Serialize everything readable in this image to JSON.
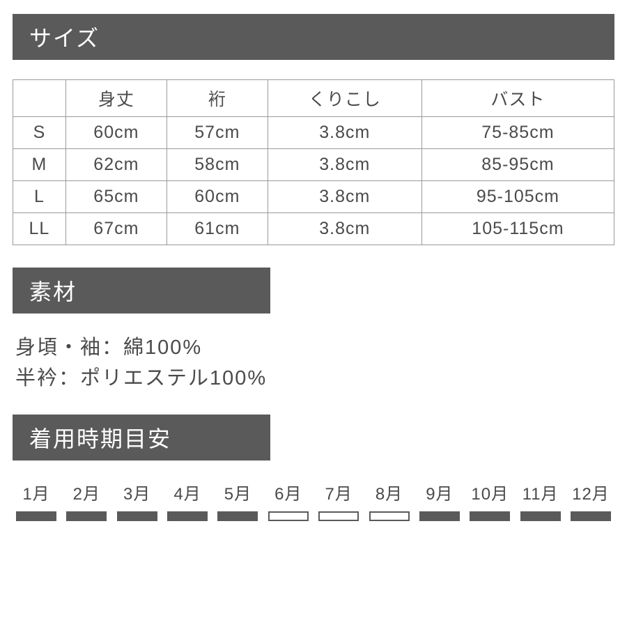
{
  "colors": {
    "headerBg": "#5a5a5a",
    "headerText": "#ffffff",
    "bodyBg": "#ffffff",
    "text": "#4a4a4a",
    "tableBorder": "#9a9a9a",
    "barFilled": "#5a5a5a",
    "barOutline": "#5a5a5a"
  },
  "sizeSection": {
    "title": "サイズ",
    "table": {
      "columns": [
        "",
        "身丈",
        "裄",
        "くりこし",
        "バスト"
      ],
      "rows": [
        [
          "S",
          "60cm",
          "57cm",
          "3.8cm",
          "75-85cm"
        ],
        [
          "M",
          "62cm",
          "58cm",
          "3.8cm",
          "85-95cm"
        ],
        [
          "L",
          "65cm",
          "60cm",
          "3.8cm",
          "95-105cm"
        ],
        [
          "LL",
          "67cm",
          "61cm",
          "3.8cm",
          "105-115cm"
        ]
      ]
    }
  },
  "materialSection": {
    "title": "素材",
    "lines": [
      "身頃・袖：綿100%",
      "半衿：ポリエステル100%"
    ]
  },
  "seasonSection": {
    "title": "着用時期目安",
    "months": [
      {
        "label": "1月",
        "filled": true
      },
      {
        "label": "2月",
        "filled": true
      },
      {
        "label": "3月",
        "filled": true
      },
      {
        "label": "4月",
        "filled": true
      },
      {
        "label": "5月",
        "filled": true
      },
      {
        "label": "6月",
        "filled": false
      },
      {
        "label": "7月",
        "filled": false
      },
      {
        "label": "8月",
        "filled": false
      },
      {
        "label": "9月",
        "filled": true
      },
      {
        "label": "10月",
        "filled": true
      },
      {
        "label": "11月",
        "filled": true
      },
      {
        "label": "12月",
        "filled": true
      }
    ]
  }
}
